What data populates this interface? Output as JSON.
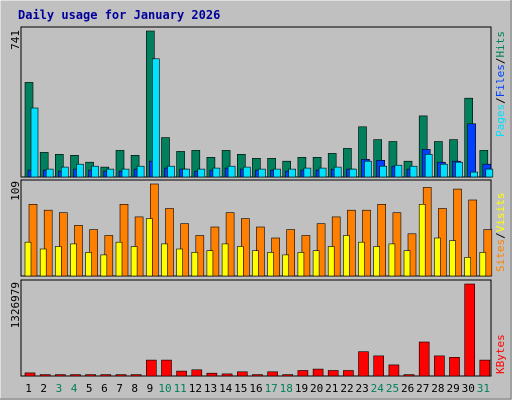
{
  "title": "Daily usage for January 2026",
  "colors": {
    "frame": "#c0c0c0",
    "plot_bg": "#c0c0c0",
    "title": "#00009a",
    "hits": "#00805c",
    "files": "#0040ff",
    "pages": "#00e0ff",
    "visits": "#ffff00",
    "sites": "#ff8000",
    "kbytes": "#ff0000",
    "weekday_label": "#000000",
    "weekend_label": "#00805c"
  },
  "chart_data": [
    {
      "type": "bar",
      "panel": "hits-files-pages",
      "ymax_label": "741",
      "ylim": [
        0,
        741
      ],
      "categories": [
        "1",
        "2",
        "3",
        "4",
        "5",
        "6",
        "7",
        "8",
        "9",
        "10",
        "11",
        "12",
        "13",
        "14",
        "15",
        "16",
        "17",
        "18",
        "19",
        "20",
        "21",
        "22",
        "23",
        "24",
        "25",
        "26",
        "27",
        "28",
        "29",
        "30",
        "31"
      ],
      "series": [
        {
          "name": "Hits",
          "values": [
            480,
            125,
            115,
            110,
            75,
            50,
            135,
            110,
            741,
            200,
            130,
            135,
            100,
            135,
            115,
            95,
            95,
            80,
            100,
            100,
            120,
            145,
            255,
            190,
            180,
            80,
            310,
            180,
            190,
            400,
            135
          ]
        },
        {
          "name": "Files",
          "values": [
            35,
            35,
            30,
            40,
            35,
            30,
            30,
            40,
            80,
            45,
            40,
            30,
            35,
            45,
            40,
            35,
            35,
            30,
            35,
            35,
            40,
            40,
            90,
            85,
            55,
            40,
            140,
            75,
            80,
            270,
            65
          ]
        },
        {
          "name": "Pages",
          "values": [
            350,
            40,
            50,
            65,
            55,
            40,
            40,
            55,
            600,
            55,
            40,
            40,
            45,
            55,
            50,
            40,
            40,
            40,
            45,
            45,
            50,
            40,
            80,
            55,
            60,
            55,
            115,
            65,
            75,
            25,
            40
          ]
        }
      ],
      "legend": [
        "Pages",
        "Files",
        "Hits"
      ]
    },
    {
      "type": "bar",
      "panel": "visits-sites",
      "ymax_label": "109",
      "ylim": [
        0,
        109
      ],
      "categories": [
        "1",
        "2",
        "3",
        "4",
        "5",
        "6",
        "7",
        "8",
        "9",
        "10",
        "11",
        "12",
        "13",
        "14",
        "15",
        "16",
        "17",
        "18",
        "19",
        "20",
        "21",
        "22",
        "23",
        "24",
        "25",
        "26",
        "27",
        "28",
        "29",
        "30",
        "31"
      ],
      "series": [
        {
          "name": "Visits",
          "values": [
            40,
            32,
            35,
            38,
            28,
            25,
            40,
            35,
            68,
            38,
            32,
            28,
            30,
            38,
            35,
            30,
            28,
            25,
            28,
            30,
            35,
            48,
            40,
            35,
            38,
            30,
            85,
            45,
            42,
            22,
            28
          ]
        },
        {
          "name": "Sites",
          "values": [
            85,
            78,
            75,
            60,
            55,
            48,
            85,
            70,
            109,
            80,
            62,
            48,
            58,
            75,
            68,
            58,
            45,
            55,
            48,
            62,
            70,
            78,
            78,
            85,
            75,
            50,
            105,
            80,
            103,
            90,
            55
          ]
        }
      ],
      "legend": [
        "Sites",
        "Visits"
      ]
    },
    {
      "type": "bar",
      "panel": "kbytes",
      "ymax_label": "1326979",
      "ylim": [
        0,
        1326979
      ],
      "categories": [
        "1",
        "2",
        "3",
        "4",
        "5",
        "6",
        "7",
        "8",
        "9",
        "10",
        "11",
        "12",
        "13",
        "14",
        "15",
        "16",
        "17",
        "18",
        "19",
        "20",
        "21",
        "22",
        "23",
        "24",
        "25",
        "26",
        "27",
        "28",
        "29",
        "30",
        "31"
      ],
      "series": [
        {
          "name": "KBytes",
          "values": [
            45000,
            20000,
            20000,
            20000,
            20000,
            20000,
            20000,
            20000,
            230000,
            230000,
            70000,
            90000,
            40000,
            30000,
            60000,
            20000,
            60000,
            20000,
            80000,
            100000,
            80000,
            80000,
            350000,
            290000,
            160000,
            20000,
            490000,
            290000,
            270000,
            1326979,
            230000
          ]
        }
      ],
      "legend": [
        "KBytes"
      ]
    }
  ],
  "weekend_days": [
    "3",
    "4",
    "10",
    "11",
    "17",
    "18",
    "24",
    "25",
    "31"
  ]
}
